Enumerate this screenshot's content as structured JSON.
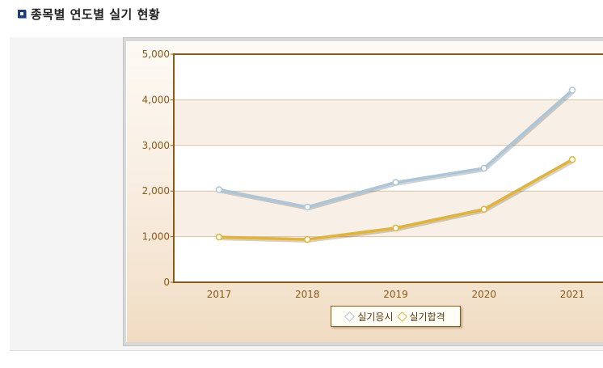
{
  "header": {
    "title": "종목별 연도별 실기 현황"
  },
  "chart_data": {
    "type": "line",
    "categories": [
      "2017",
      "2018",
      "2019",
      "2020",
      "2021"
    ],
    "series": [
      {
        "name": "실기응시",
        "values": [
          2030,
          1650,
          2190,
          2500,
          4210
        ],
        "color": "#a9c6da"
      },
      {
        "name": "실기합격",
        "values": [
          990,
          940,
          1190,
          1600,
          2690
        ],
        "color": "#e4b32f"
      }
    ],
    "ylim": [
      0,
      5000
    ],
    "yticks": [
      "0",
      "1,000",
      "2,000",
      "3,000",
      "4,000",
      "5,000"
    ],
    "ytick_values": [
      0,
      1000,
      2000,
      3000,
      4000,
      5000
    ],
    "grid": true,
    "legend": "bottom-center",
    "colors": {
      "axis": "#8b5a16",
      "tick_text": "#8b5a16",
      "band": "#f8efe6",
      "grid": "#d9c3a0"
    }
  }
}
